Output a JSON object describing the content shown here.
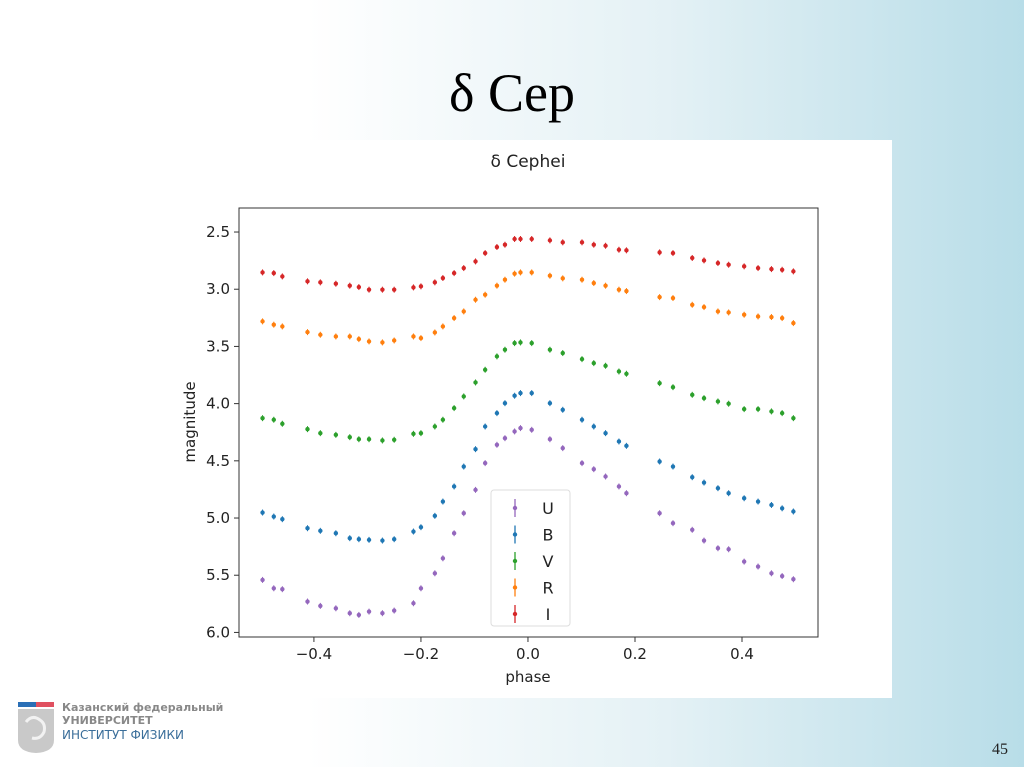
{
  "slide": {
    "title": "δ Cep",
    "page_number": "45",
    "logo": {
      "line1": "Казанский федеральный",
      "line2": "УНИВЕРСИТЕТ",
      "line3": "ИНСТИТУТ ФИЗИКИ"
    }
  },
  "chart_data": {
    "type": "scatter",
    "title": "δ Cephei",
    "xlabel": "phase",
    "ylabel": "magnitude",
    "xlim": [
      -0.54,
      0.542
    ],
    "ylim": [
      6.04,
      2.29
    ],
    "y_inverted": true,
    "grid": false,
    "legend_position": "bottom-center",
    "xticks": [
      "−0.4",
      "−0.2",
      "0.0",
      "0.2",
      "0.4"
    ],
    "xtick_values": [
      -0.4,
      -0.2,
      0.0,
      0.2,
      0.4
    ],
    "yticks": [
      "2.5",
      "3.0",
      "3.5",
      "4.0",
      "4.5",
      "5.0",
      "5.5",
      "6.0"
    ],
    "ytick_values": [
      2.5,
      3.0,
      3.5,
      4.0,
      4.5,
      5.0,
      5.5,
      6.0
    ],
    "x": [
      -0.496,
      -0.475,
      -0.459,
      -0.412,
      -0.388,
      -0.359,
      -0.333,
      -0.316,
      -0.297,
      -0.272,
      -0.25,
      -0.214,
      -0.2,
      -0.174,
      -0.159,
      -0.138,
      -0.12,
      -0.098,
      -0.08,
      -0.058,
      -0.043,
      -0.025,
      -0.014,
      0.007,
      0.041,
      0.065,
      0.101,
      0.123,
      0.145,
      0.17,
      0.184,
      0.246,
      0.271,
      0.307,
      0.329,
      0.355,
      0.375,
      0.404,
      0.43,
      0.455,
      0.475,
      0.496
    ],
    "series": [
      {
        "name": "U",
        "color": "#9467bd",
        "values": [
          5.541,
          5.614,
          5.622,
          5.73,
          5.768,
          5.789,
          5.832,
          5.847,
          5.818,
          5.832,
          5.809,
          5.745,
          5.614,
          5.483,
          5.352,
          5.133,
          4.958,
          4.754,
          4.52,
          4.36,
          4.302,
          4.243,
          4.214,
          4.229,
          4.311,
          4.389,
          4.52,
          4.573,
          4.637,
          4.724,
          4.783,
          4.958,
          5.045,
          5.103,
          5.197,
          5.264,
          5.273,
          5.381,
          5.424,
          5.483,
          5.507,
          5.535
        ]
      },
      {
        "name": "B",
        "color": "#1f77b4",
        "values": [
          4.952,
          4.987,
          5.01,
          5.089,
          5.112,
          5.133,
          5.176,
          5.185,
          5.191,
          5.197,
          5.185,
          5.118,
          5.08,
          4.981,
          4.856,
          4.724,
          4.55,
          4.398,
          4.2,
          4.083,
          3.996,
          3.931,
          3.908,
          3.908,
          3.996,
          4.054,
          4.141,
          4.2,
          4.258,
          4.331,
          4.369,
          4.506,
          4.55,
          4.643,
          4.69,
          4.739,
          4.783,
          4.827,
          4.856,
          4.886,
          4.915,
          4.943
        ]
      },
      {
        "name": "V",
        "color": "#2ca02c",
        "values": [
          4.127,
          4.141,
          4.176,
          4.223,
          4.258,
          4.273,
          4.293,
          4.311,
          4.311,
          4.322,
          4.316,
          4.264,
          4.258,
          4.2,
          4.141,
          4.039,
          3.937,
          3.815,
          3.704,
          3.587,
          3.529,
          3.471,
          3.465,
          3.471,
          3.529,
          3.558,
          3.611,
          3.646,
          3.669,
          3.719,
          3.739,
          3.821,
          3.856,
          3.923,
          3.952,
          3.981,
          4.001,
          4.048,
          4.048,
          4.068,
          4.083,
          4.127
        ]
      },
      {
        "name": "R",
        "color": "#ff7f0e",
        "values": [
          3.281,
          3.31,
          3.325,
          3.375,
          3.398,
          3.413,
          3.413,
          3.436,
          3.456,
          3.465,
          3.448,
          3.413,
          3.427,
          3.378,
          3.325,
          3.252,
          3.194,
          3.092,
          3.048,
          2.969,
          2.917,
          2.864,
          2.853,
          2.853,
          2.882,
          2.905,
          2.917,
          2.946,
          2.969,
          3.004,
          3.016,
          3.069,
          3.077,
          3.136,
          3.156,
          3.194,
          3.203,
          3.223,
          3.238,
          3.243,
          3.252,
          3.296
        ]
      },
      {
        "name": "I",
        "color": "#d62728",
        "values": [
          2.853,
          2.859,
          2.888,
          2.931,
          2.94,
          2.952,
          2.969,
          2.981,
          3.004,
          3.004,
          3.004,
          2.984,
          2.975,
          2.94,
          2.902,
          2.859,
          2.815,
          2.757,
          2.684,
          2.631,
          2.611,
          2.561,
          2.561,
          2.561,
          2.573,
          2.59,
          2.59,
          2.611,
          2.62,
          2.655,
          2.66,
          2.678,
          2.684,
          2.727,
          2.748,
          2.771,
          2.786,
          2.8,
          2.815,
          2.824,
          2.83,
          2.844
        ]
      }
    ]
  }
}
